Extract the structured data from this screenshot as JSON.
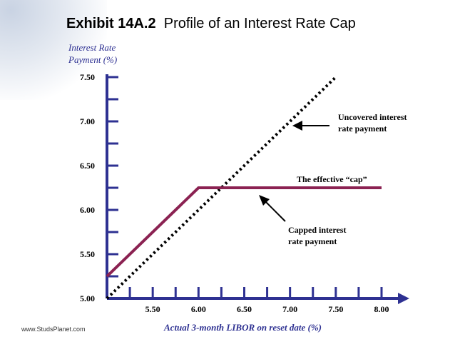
{
  "header": {
    "exhibit": "Exhibit 14A.2",
    "title": "Profile of an Interest Rate Cap"
  },
  "footer": {
    "source": "www.StudsPlanet.com"
  },
  "chart_data": {
    "type": "line",
    "title": "Profile of an Interest Rate Cap",
    "ylabel_line1": "Interest Rate",
    "ylabel_line2": "Payment (%)",
    "xlabel": "Actual 3-month LIBOR on reset date (%)",
    "xlim": [
      5.0,
      8.0
    ],
    "ylim": [
      5.0,
      7.5
    ],
    "x_ticks": [
      "5.50",
      "6.00",
      "6.50",
      "7.00",
      "7.50",
      "8.00"
    ],
    "y_ticks": [
      "5.00",
      "5.50",
      "6.00",
      "6.50",
      "7.00",
      "7.50"
    ],
    "series": [
      {
        "role": "uncovered",
        "color": "#000000",
        "style": "dotted",
        "points": [
          [
            5.0,
            5.0
          ],
          [
            7.5,
            7.5
          ]
        ]
      },
      {
        "role": "capped",
        "color": "#8b2252",
        "style": "solid",
        "points": [
          [
            5.0,
            5.25
          ],
          [
            6.0,
            6.25
          ],
          [
            8.0,
            6.25
          ]
        ]
      }
    ],
    "annotations": [
      {
        "id": "uncovered",
        "lines": [
          "Uncovered interest",
          "rate payment"
        ]
      },
      {
        "id": "cap",
        "lines": [
          "The effective “cap”"
        ]
      },
      {
        "id": "capped",
        "lines": [
          "Capped interest",
          "rate payment"
        ]
      }
    ],
    "axis_color": "#2e3192",
    "grid": false
  }
}
